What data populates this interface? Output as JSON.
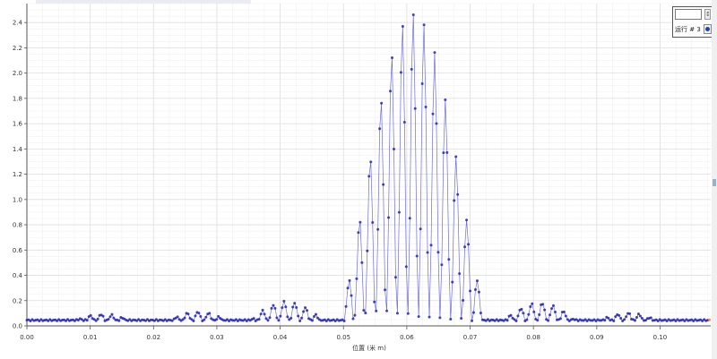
{
  "chart_data": {
    "type": "scatter",
    "title": "",
    "xlabel": "位置 (米 m)",
    "ylabel": "",
    "xlim": [
      0,
      0.108
    ],
    "ylim": [
      0,
      2.55
    ],
    "x_ticks": [
      "0.00",
      "0.01",
      "0.02",
      "0.03",
      "0.04",
      "0.05",
      "0.06",
      "0.07",
      "0.08",
      "0.09",
      "0.10"
    ],
    "y_ticks": [
      "0.0",
      "0.2",
      "0.4",
      "0.6",
      "0.8",
      "1.0",
      "1.2",
      "1.4",
      "1.6",
      "1.8",
      "2.0",
      "2.2",
      "2.4"
    ],
    "grid": true,
    "legend_placement": "top-right",
    "series": [
      {
        "name": "运行 # 3",
        "color": "#2d2dc8",
        "model": {
          "baseline": 0.045,
          "fringe_period_m": 0.0017,
          "central_envelope": {
            "center_m": 0.061,
            "half_width_m": 0.0118,
            "peak": 2.45
          },
          "side_lobes": [
            {
              "center_m": 0.041,
              "half_width_m": 0.006,
              "peak": 0.16
            },
            {
              "center_m": 0.081,
              "half_width_m": 0.006,
              "peak": 0.15
            },
            {
              "center_m": 0.027,
              "half_width_m": 0.005,
              "peak": 0.08
            },
            {
              "center_m": 0.095,
              "half_width_m": 0.005,
              "peak": 0.07
            },
            {
              "center_m": 0.012,
              "half_width_m": 0.005,
              "peak": 0.06
            }
          ]
        }
      }
    ]
  },
  "legend": {
    "label": "运行 # 3",
    "input_value": "",
    "scroll_glyph": "↕",
    "dot_color": "#1f3fbf"
  },
  "colors": {
    "grid": "#dedede",
    "axis": "#555555",
    "series_line": "#6d6dd9",
    "series_point": "#2424b8",
    "end_point": "#f08a24"
  }
}
